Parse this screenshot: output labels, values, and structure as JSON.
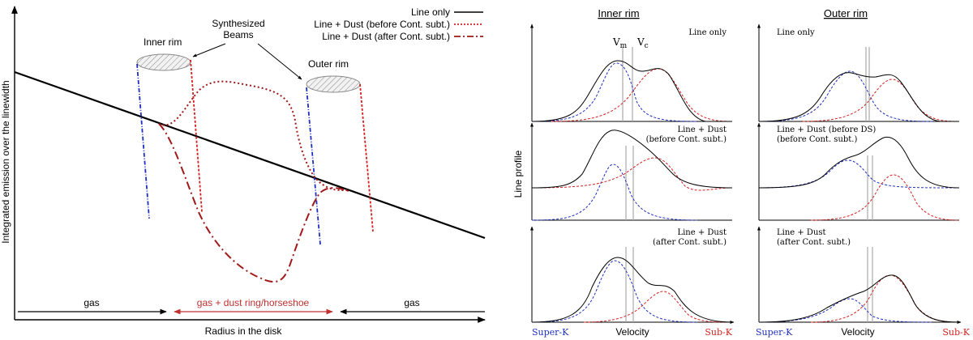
{
  "left": {
    "ylabel": "Integrated emission over the linewidth",
    "xlabel": "Radius in the disk",
    "legend": [
      {
        "label": "Line only",
        "color": "#000000",
        "style": "solid"
      },
      {
        "label": "Line + Dust (before Cont. subt.)",
        "color": "#d62020",
        "style": "dotted"
      },
      {
        "label": "Line + Dust (after Cont. subt.)",
        "color": "#a01818",
        "style": "dash-dot"
      }
    ],
    "annotations": {
      "beams": [
        "Synthesized",
        "Beams"
      ],
      "inner_rim": "Inner rim",
      "outer_rim": "Outer rim"
    },
    "regions": {
      "gas_left": "gas",
      "ring": "gas + dust ring/horseshoe",
      "gas_right": "gas"
    },
    "colors": {
      "blue": "#2030c0",
      "red": "#d62020",
      "darkred": "#a01818",
      "ring_text": "#c03030"
    }
  },
  "right": {
    "col_titles": [
      "Inner rim",
      "Outer rim"
    ],
    "ylabel": "Line profile",
    "xlabel": "Velocity",
    "super_k": "Super-K",
    "sub_k": "Sub-K",
    "v_m": "V",
    "v_m_sub": "m",
    "v_c": "V",
    "v_c_sub": "c",
    "panel_labels": {
      "inner_top": "Line only",
      "inner_mid": [
        "Line + Dust",
        "(before Cont. subt.)"
      ],
      "inner_bot": [
        "Line + Dust",
        "(after Cont. subt.)"
      ],
      "outer_top": "Line only",
      "outer_mid": [
        "Line + Dust (before DS)",
        "(before Cont. subt.)"
      ],
      "outer_bot": [
        "Line + Dust",
        "(after Cont. subt.)"
      ]
    }
  }
}
